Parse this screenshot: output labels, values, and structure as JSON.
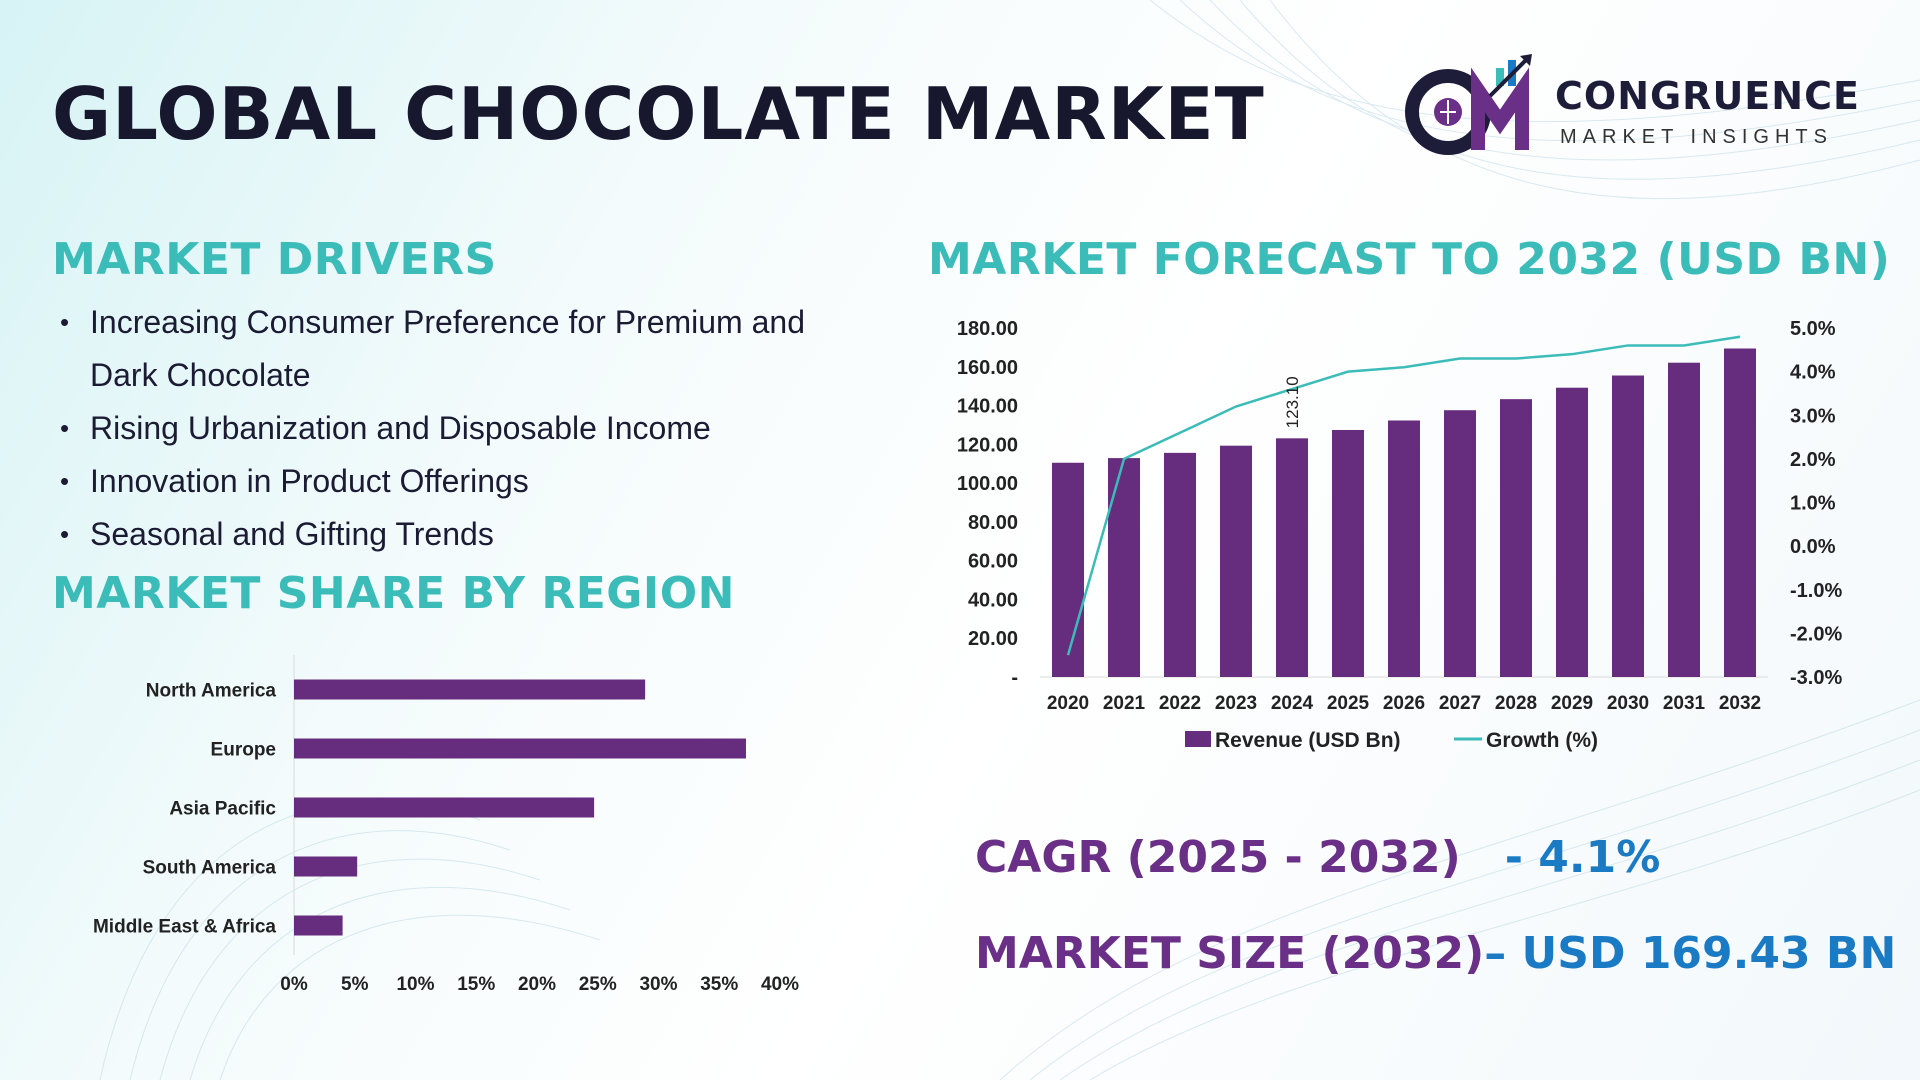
{
  "title": "GLOBAL CHOCOLATE MARKET",
  "logo": {
    "name": "CONGRUENCE",
    "subtitle": "MARKET INSIGHTS",
    "mark": "CM"
  },
  "drivers": {
    "heading": "MARKET DRIVERS",
    "items": [
      "Increasing Consumer Preference for Premium and Dark Chocolate",
      "Rising Urbanization and Disposable Income",
      "Innovation in Product Offerings",
      "Seasonal and Gifting Trends"
    ]
  },
  "region": {
    "heading": "MARKET SHARE BY REGION"
  },
  "forecast": {
    "heading": "MARKET FORECAST TO 2032 (USD BN)"
  },
  "stats": {
    "cagr_label": "CAGR (2025 - 2032)",
    "cagr_value": "- 4.1%",
    "size_label": "MARKET SIZE (2032)",
    "size_value": "– USD 169.43 BN"
  },
  "colors": {
    "bar": "#662d7e",
    "line": "#3cbcb8",
    "heading": "#3cbcb8",
    "stat_label": "#6a2f86",
    "stat_value": "#1a7ac4"
  },
  "chart_data": [
    {
      "type": "bar",
      "orientation": "horizontal",
      "categories": [
        "North America",
        "Europe",
        "Asia Pacific",
        "South America",
        "Middle East & Africa"
      ],
      "values": [
        28.9,
        37.2,
        24.7,
        5.2,
        4.0
      ],
      "xlim": [
        0,
        40
      ],
      "x_ticks": [
        "0%",
        "5%",
        "10%",
        "15%",
        "20%",
        "25%",
        "30%",
        "35%",
        "40%"
      ],
      "grid": false
    },
    {
      "type": "bar",
      "categories": [
        "2020",
        "2021",
        "2022",
        "2023",
        "2024",
        "2025",
        "2026",
        "2027",
        "2028",
        "2029",
        "2030",
        "2031",
        "2032"
      ],
      "series": [
        {
          "name": "Revenue (USD Bn)",
          "kind": "bar",
          "axis": "left",
          "values": [
            110.5,
            112.9,
            115.6,
            119.3,
            123.1,
            127.4,
            132.3,
            137.6,
            143.3,
            149.2,
            155.5,
            162.1,
            169.43
          ]
        },
        {
          "name": "Growth (%)",
          "kind": "line",
          "axis": "right",
          "values": [
            -2.5,
            2.0,
            2.6,
            3.2,
            3.6,
            4.0,
            4.1,
            4.3,
            4.3,
            4.4,
            4.6,
            4.6,
            4.8
          ]
        }
      ],
      "data_labels": [
        {
          "category": "2024",
          "text": "123.10"
        }
      ],
      "ylim": [
        0,
        180
      ],
      "y_ticks": [
        "-",
        "20.00",
        "40.00",
        "60.00",
        "80.00",
        "100.00",
        "120.00",
        "140.00",
        "160.00",
        "180.00"
      ],
      "y2lim": [
        -3,
        5
      ],
      "y2_ticks": [
        "-3.0%",
        "-2.0%",
        "-1.0%",
        "0.0%",
        "1.0%",
        "2.0%",
        "3.0%",
        "4.0%",
        "5.0%"
      ],
      "legend": "bottom",
      "grid": false
    }
  ]
}
